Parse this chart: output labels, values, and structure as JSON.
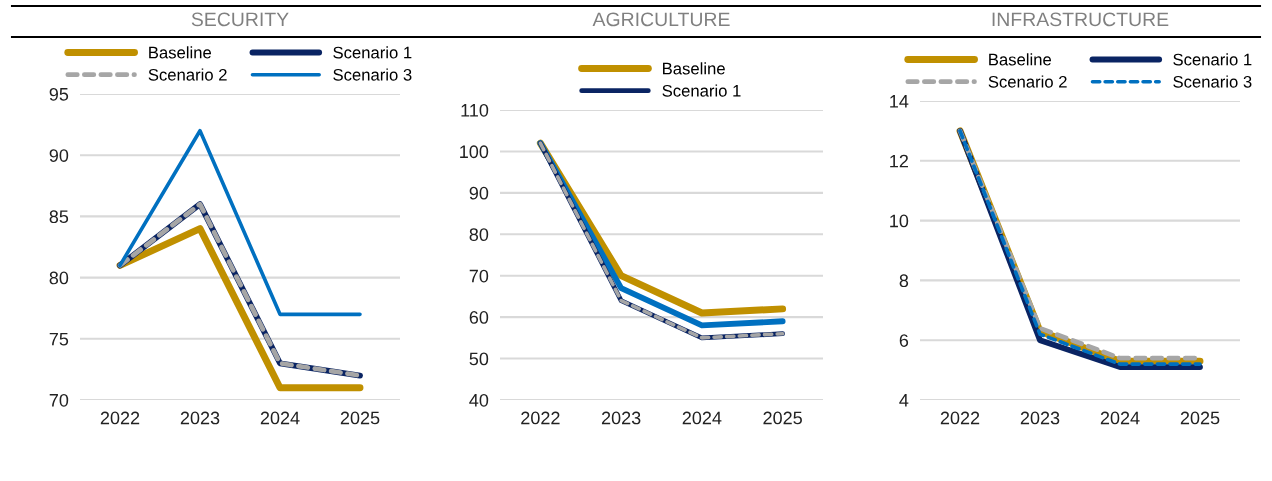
{
  "chart_data": [
    {
      "type": "line",
      "title": "SECURITY",
      "categories": [
        "2022",
        "2023",
        "2024",
        "2025"
      ],
      "ylim": [
        70,
        95
      ],
      "yticks": [
        70,
        75,
        80,
        85,
        90,
        95
      ],
      "grid": "y",
      "legend": "top",
      "marker": "none",
      "series": [
        {
          "name": "Baseline",
          "color": "#c09000",
          "line_style": "solid",
          "values": [
            81,
            84,
            71,
            71
          ]
        },
        {
          "name": "Scenario 1",
          "color": "#0a2463",
          "line_style": "solid",
          "values": [
            81,
            86,
            73,
            72
          ]
        },
        {
          "name": "Scenario 2",
          "color": "#a6a6a6",
          "line_style": "dashed",
          "values": [
            81,
            86,
            73,
            72
          ]
        },
        {
          "name": "Scenario 3",
          "color": "#0070c0",
          "line_style": "solid",
          "values": [
            81,
            92,
            77,
            77
          ]
        }
      ]
    },
    {
      "type": "line",
      "title": "AGRICULTURE",
      "categories": [
        "2022",
        "2023",
        "2024",
        "2025"
      ],
      "ylim": [
        40,
        110
      ],
      "yticks": [
        40,
        50,
        60,
        70,
        80,
        90,
        100,
        110
      ],
      "grid": "y",
      "legend": "top",
      "marker": "none",
      "series": [
        {
          "name": "Baseline",
          "color": "#c09000",
          "line_style": "solid",
          "values": [
            102,
            70,
            61,
            62
          ]
        },
        {
          "color": "#0070c0",
          "line_style": "solid",
          "values": [
            102,
            67,
            58,
            59
          ]
        },
        {
          "name": "Scenario 1",
          "color": "#0a2463",
          "line_style": "solid",
          "values": [
            102,
            64,
            55,
            56
          ]
        },
        {
          "color": "#a6a6a6",
          "line_style": "dashed",
          "values": [
            102,
            64,
            55,
            56
          ]
        }
      ]
    },
    {
      "type": "line",
      "title": "INFRASTRUCTURE",
      "categories": [
        "2022",
        "2023",
        "2024",
        "2025"
      ],
      "ylim": [
        4,
        14
      ],
      "yticks": [
        4,
        6,
        8,
        10,
        12,
        14
      ],
      "grid": "y",
      "legend": "top",
      "marker": "none",
      "series": [
        {
          "name": "Baseline",
          "color": "#c09000",
          "line_style": "solid",
          "values": [
            13,
            6.3,
            5.3,
            5.3
          ]
        },
        {
          "name": "Scenario 1",
          "color": "#0a2463",
          "line_style": "solid",
          "values": [
            13,
            6.0,
            5.1,
            5.1
          ]
        },
        {
          "name": "Scenario 2",
          "color": "#a6a6a6",
          "line_style": "dashed",
          "values": [
            13,
            6.4,
            5.4,
            5.4
          ]
        },
        {
          "name": "Scenario 3",
          "color": "#0070c0",
          "line_style": "dashed",
          "values": [
            13,
            6.2,
            5.2,
            5.2
          ]
        }
      ]
    }
  ]
}
